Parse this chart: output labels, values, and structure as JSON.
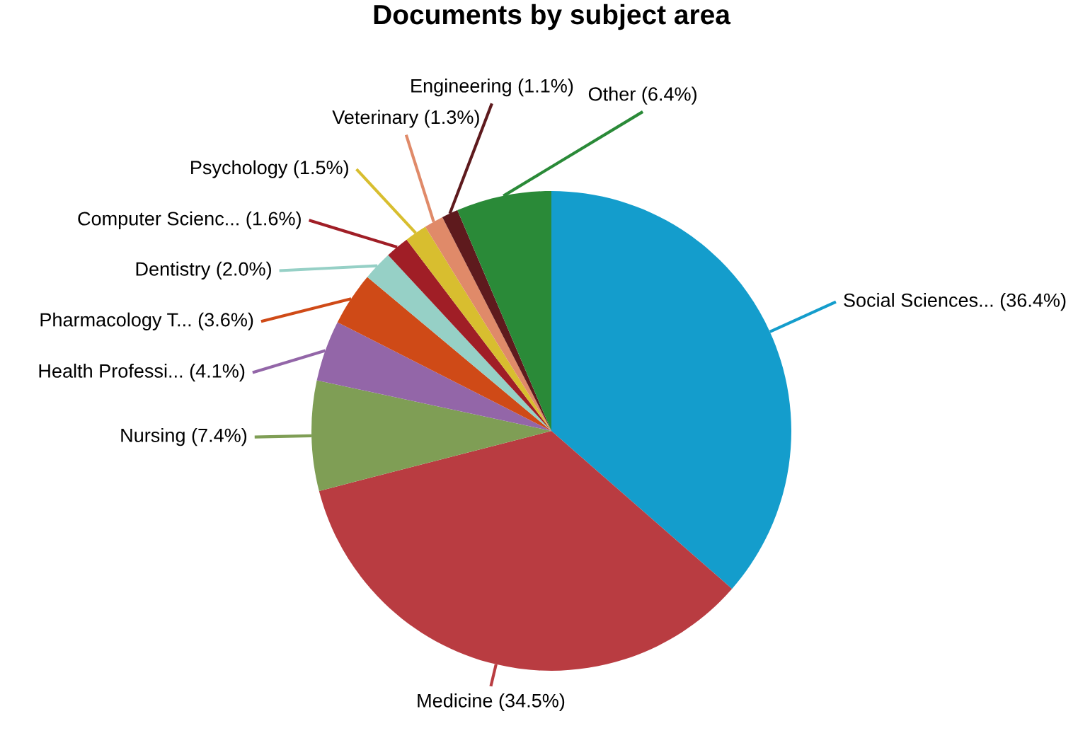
{
  "chart_data": {
    "type": "pie",
    "title": "Documents by subject area",
    "categories": [
      "Social Sciences...",
      "Medicine",
      "Nursing",
      "Health Professi...",
      "Pharmacology T...",
      "Dentistry",
      "Computer Scienc...",
      "Psychology",
      "Veterinary",
      "Engineering",
      "Other"
    ],
    "values": [
      36.4,
      34.5,
      7.4,
      4.1,
      3.6,
      2.0,
      1.6,
      1.5,
      1.3,
      1.1,
      6.4
    ],
    "value_labels": [
      "(36.4%)",
      "(34.5%)",
      "(7.4%)",
      "(4.1%)",
      "(3.6%)",
      "(2.0%)",
      "(1.6%)",
      "(1.5%)",
      "(1.3%)",
      "(1.1%)",
      "(6.4%)"
    ],
    "colors": [
      "#149dcc",
      "#b93c41",
      "#7f9e55",
      "#9366a8",
      "#cf4a17",
      "#96d0c6",
      "#a01e26",
      "#d8be2f",
      "#e08a69",
      "#5e1a1d",
      "#2a8a38"
    ]
  }
}
